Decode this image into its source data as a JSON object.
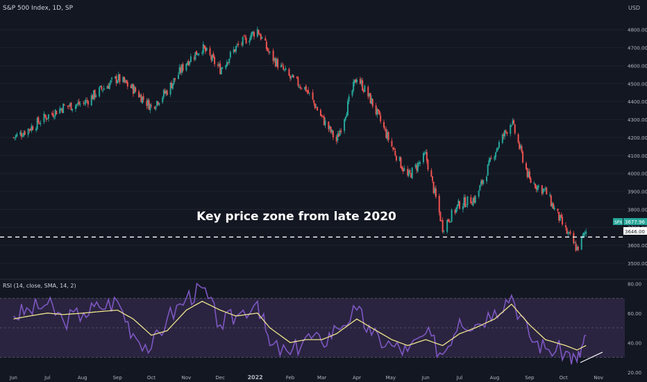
{
  "header": {
    "symbol_title": "S&P 500 Index, 1D, SP",
    "currency": "USD"
  },
  "annotation": {
    "text": "Key price zone from late 2020"
  },
  "price_axis": {
    "ticks": [
      "4800.00",
      "4700.00",
      "4600.00",
      "4500.00",
      "4400.00",
      "4300.00",
      "4200.00",
      "4100.00",
      "4000.00",
      "3900.00",
      "3800.00",
      "3700.00",
      "3600.00",
      "3500.00"
    ]
  },
  "price_badges": {
    "last_tag": "SPX",
    "last_price": "3677.96",
    "level_price": "3646.00"
  },
  "rsi": {
    "label": "RSI (14, close, SMA, 14, 2)",
    "ticks": [
      "80.00",
      "60.00",
      "40.00",
      "20.00"
    ]
  },
  "time_axis": {
    "labels": [
      "Jun",
      "Jul",
      "Aug",
      "Sep",
      "Oct",
      "Nov",
      "Dec",
      "2022",
      "Feb",
      "Mar",
      "Apr",
      "May",
      "Jun",
      "Jul",
      "Aug",
      "Sep",
      "Oct",
      "Nov"
    ]
  },
  "colors": {
    "background": "#131722",
    "up": "#26a69a",
    "down": "#ef5350",
    "rsi_line": "#7e57c2",
    "rsi_ma": "#f0e68c",
    "rsi_band": "#2a2440",
    "dashed_level": "#ffffff",
    "price_tag": "#26a69a"
  },
  "chart_data": [
    {
      "type": "line",
      "title": "S&P 500 Index, 1D, SP",
      "x": [
        "2021-06-01",
        "2021-06-15",
        "2021-07-01",
        "2021-07-15",
        "2021-08-02",
        "2021-08-16",
        "2021-09-01",
        "2021-09-15",
        "2021-10-01",
        "2021-10-15",
        "2021-11-01",
        "2021-11-15",
        "2021-12-01",
        "2021-12-15",
        "2022-01-03",
        "2022-01-14",
        "2022-02-01",
        "2022-02-15",
        "2022-03-01",
        "2022-03-14",
        "2022-04-01",
        "2022-04-14",
        "2022-05-02",
        "2022-05-16",
        "2022-06-01",
        "2022-06-16",
        "2022-07-01",
        "2022-07-15",
        "2022-08-01",
        "2022-08-16",
        "2022-09-01",
        "2022-09-15",
        "2022-10-03",
        "2022-10-13",
        "2022-10-21"
      ],
      "y": [
        4200,
        4250,
        4320,
        4370,
        4390,
        4460,
        4530,
        4470,
        4370,
        4460,
        4620,
        4700,
        4580,
        4700,
        4800,
        4660,
        4530,
        4470,
        4310,
        4180,
        4540,
        4400,
        4150,
        3980,
        4100,
        3700,
        3830,
        3860,
        4120,
        4290,
        3960,
        3900,
        3680,
        3580,
        3677.96
      ],
      "ylim": [
        3450,
        4880
      ],
      "level_line": 3646.0,
      "ylabel": "USD"
    },
    {
      "type": "line",
      "title": "RSI (14, close, SMA, 14, 2)",
      "x": [
        "2021-06-01",
        "2021-06-15",
        "2021-07-01",
        "2021-07-15",
        "2021-08-02",
        "2021-08-16",
        "2021-09-01",
        "2021-09-15",
        "2021-10-01",
        "2021-10-15",
        "2021-11-01",
        "2021-11-15",
        "2021-12-01",
        "2021-12-15",
        "2022-01-03",
        "2022-01-14",
        "2022-02-01",
        "2022-02-15",
        "2022-03-01",
        "2022-03-14",
        "2022-04-01",
        "2022-04-14",
        "2022-05-02",
        "2022-05-16",
        "2022-06-01",
        "2022-06-16",
        "2022-07-01",
        "2022-07-15",
        "2022-08-01",
        "2022-08-16",
        "2022-09-01",
        "2022-09-15",
        "2022-10-03",
        "2022-10-13",
        "2022-10-21"
      ],
      "series": [
        {
          "values": [
            58,
            62,
            66,
            55,
            60,
            64,
            68,
            46,
            36,
            56,
            70,
            77,
            52,
            58,
            68,
            38,
            32,
            44,
            40,
            50,
            62,
            45,
            38,
            34,
            46,
            32,
            56,
            52,
            62,
            72,
            44,
            36,
            34,
            27,
            45
          ]
        },
        {
          "values": [
            56,
            58,
            60,
            59,
            60,
            61,
            62,
            56,
            45,
            48,
            62,
            68,
            62,
            58,
            60,
            50,
            40,
            42,
            42,
            46,
            56,
            50,
            42,
            38,
            42,
            38,
            46,
            50,
            56,
            66,
            52,
            42,
            38,
            35,
            38
          ]
        }
      ],
      "ylim": [
        18,
        82
      ],
      "bands": [
        30,
        70
      ]
    }
  ]
}
